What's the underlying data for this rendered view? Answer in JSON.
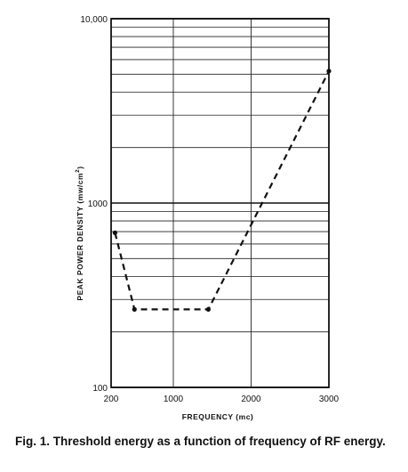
{
  "chart_data": {
    "type": "line",
    "xlabel": "FREQUENCY (mc)",
    "ylabel_main": "PEAK POWER DENSITY (mw/cm",
    "ylabel_sup": "2",
    "ylabel_close": ")",
    "x_ticks": [
      {
        "value": 200,
        "label": "200"
      },
      {
        "value": 1000,
        "label": "1000"
      },
      {
        "value": 2000,
        "label": "2000"
      },
      {
        "value": 3000,
        "label": "3000"
      }
    ],
    "y_ticks": [
      {
        "value": 100,
        "label": "100"
      },
      {
        "value": 1000,
        "label": "1000"
      },
      {
        "value": 10000,
        "label": "10,000"
      }
    ],
    "xlim": [
      200,
      3000
    ],
    "ylim": [
      100,
      10000
    ],
    "y_scale": "log",
    "grid": true,
    "series": [
      {
        "style": "dashed",
        "color": "#111111",
        "x": [
          250,
          500,
          1450,
          3000
        ],
        "y": [
          690,
          265,
          265,
          5200
        ]
      }
    ]
  },
  "caption": "Fig. 1.  Threshold energy as a function of frequency of RF energy."
}
